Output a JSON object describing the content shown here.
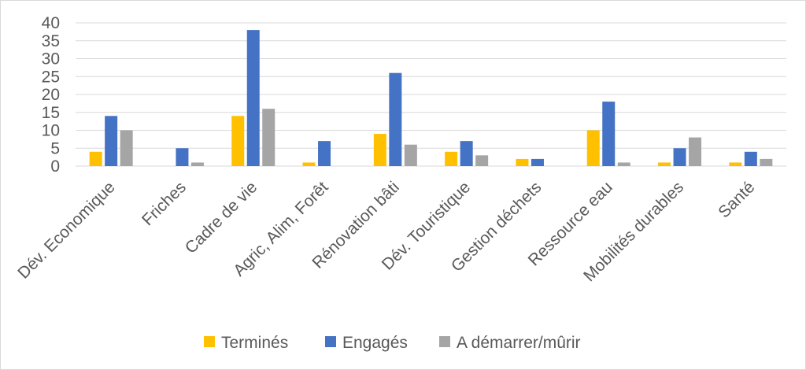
{
  "chart_data": {
    "type": "bar",
    "title": "",
    "xlabel": "",
    "ylabel": "",
    "ylim": [
      0,
      40
    ],
    "yticks": [
      0,
      5,
      10,
      15,
      20,
      25,
      30,
      35,
      40
    ],
    "grid": true,
    "legend_position": "bottom",
    "categories": [
      "Dév. Economique",
      "Friches",
      "Cadre de vie",
      "Agric, Alim, Forêt",
      "Rénovation bâti",
      "Dév. Touristique",
      "Gestion déchets",
      "Ressource eau",
      "Mobilités durables",
      "Santé"
    ],
    "series": [
      {
        "name": "Terminés",
        "color": "#ffc000",
        "values": [
          4,
          0,
          14,
          1,
          9,
          4,
          2,
          10,
          1,
          1
        ]
      },
      {
        "name": "Engagés",
        "color": "#4472c4",
        "values": [
          14,
          5,
          38,
          7,
          26,
          7,
          2,
          18,
          5,
          4
        ]
      },
      {
        "name": "A démarrer/mûrir",
        "color": "#a5a5a5",
        "values": [
          10,
          1,
          16,
          0,
          6,
          3,
          0,
          1,
          8,
          2
        ]
      }
    ]
  }
}
